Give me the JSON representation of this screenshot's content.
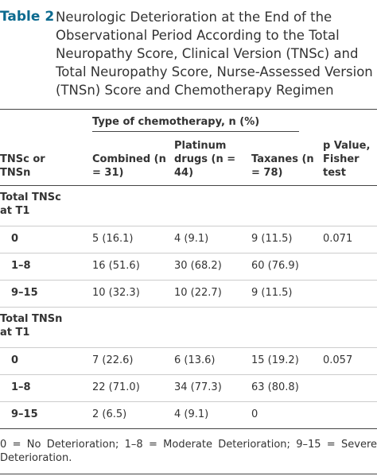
{
  "header": {
    "label": "Table 2",
    "title": "Neurologic Deterioration at the End of the Observational Period According to the Total Neuropathy Score, Clinical Version (TNSc) and Total Neuropathy Score, Nurse-Assessed Version (TNSn) Score and Chemotherapy Regimen"
  },
  "table": {
    "group_header": "Type of chemotherapy, n (%)",
    "columns": [
      "TNSc or TNSn",
      "Combined (n = 31)",
      "Platinum drugs (n = 44)",
      "Taxanes (n = 78)",
      "p Value, Fisher test"
    ],
    "sections": [
      {
        "label": "Total TNSc at T1",
        "rows": [
          [
            "0",
            "5 (16.1)",
            "4 (9.1)",
            "9 (11.5)",
            "0.071"
          ],
          [
            "1–8",
            "16 (51.6)",
            "30 (68.2)",
            "60 (76.9)",
            ""
          ],
          [
            "9–15",
            "10 (32.3)",
            "10 (22.7)",
            "9 (11.5)",
            ""
          ]
        ]
      },
      {
        "label": "Total TNSn at T1",
        "rows": [
          [
            "0",
            "7 (22.6)",
            "6 (13.6)",
            "15 (19.2)",
            "0.057"
          ],
          [
            "1–8",
            "22 (71.0)",
            "34 (77.3)",
            "63 (80.8)",
            ""
          ],
          [
            "9–15",
            "2 (6.5)",
            "4 (9.1)",
            "0",
            ""
          ]
        ]
      }
    ]
  },
  "footnote": "0 = No Deterioration; 1–8 = Moderate Deterioration; 9–15 = Severe Deterioration."
}
